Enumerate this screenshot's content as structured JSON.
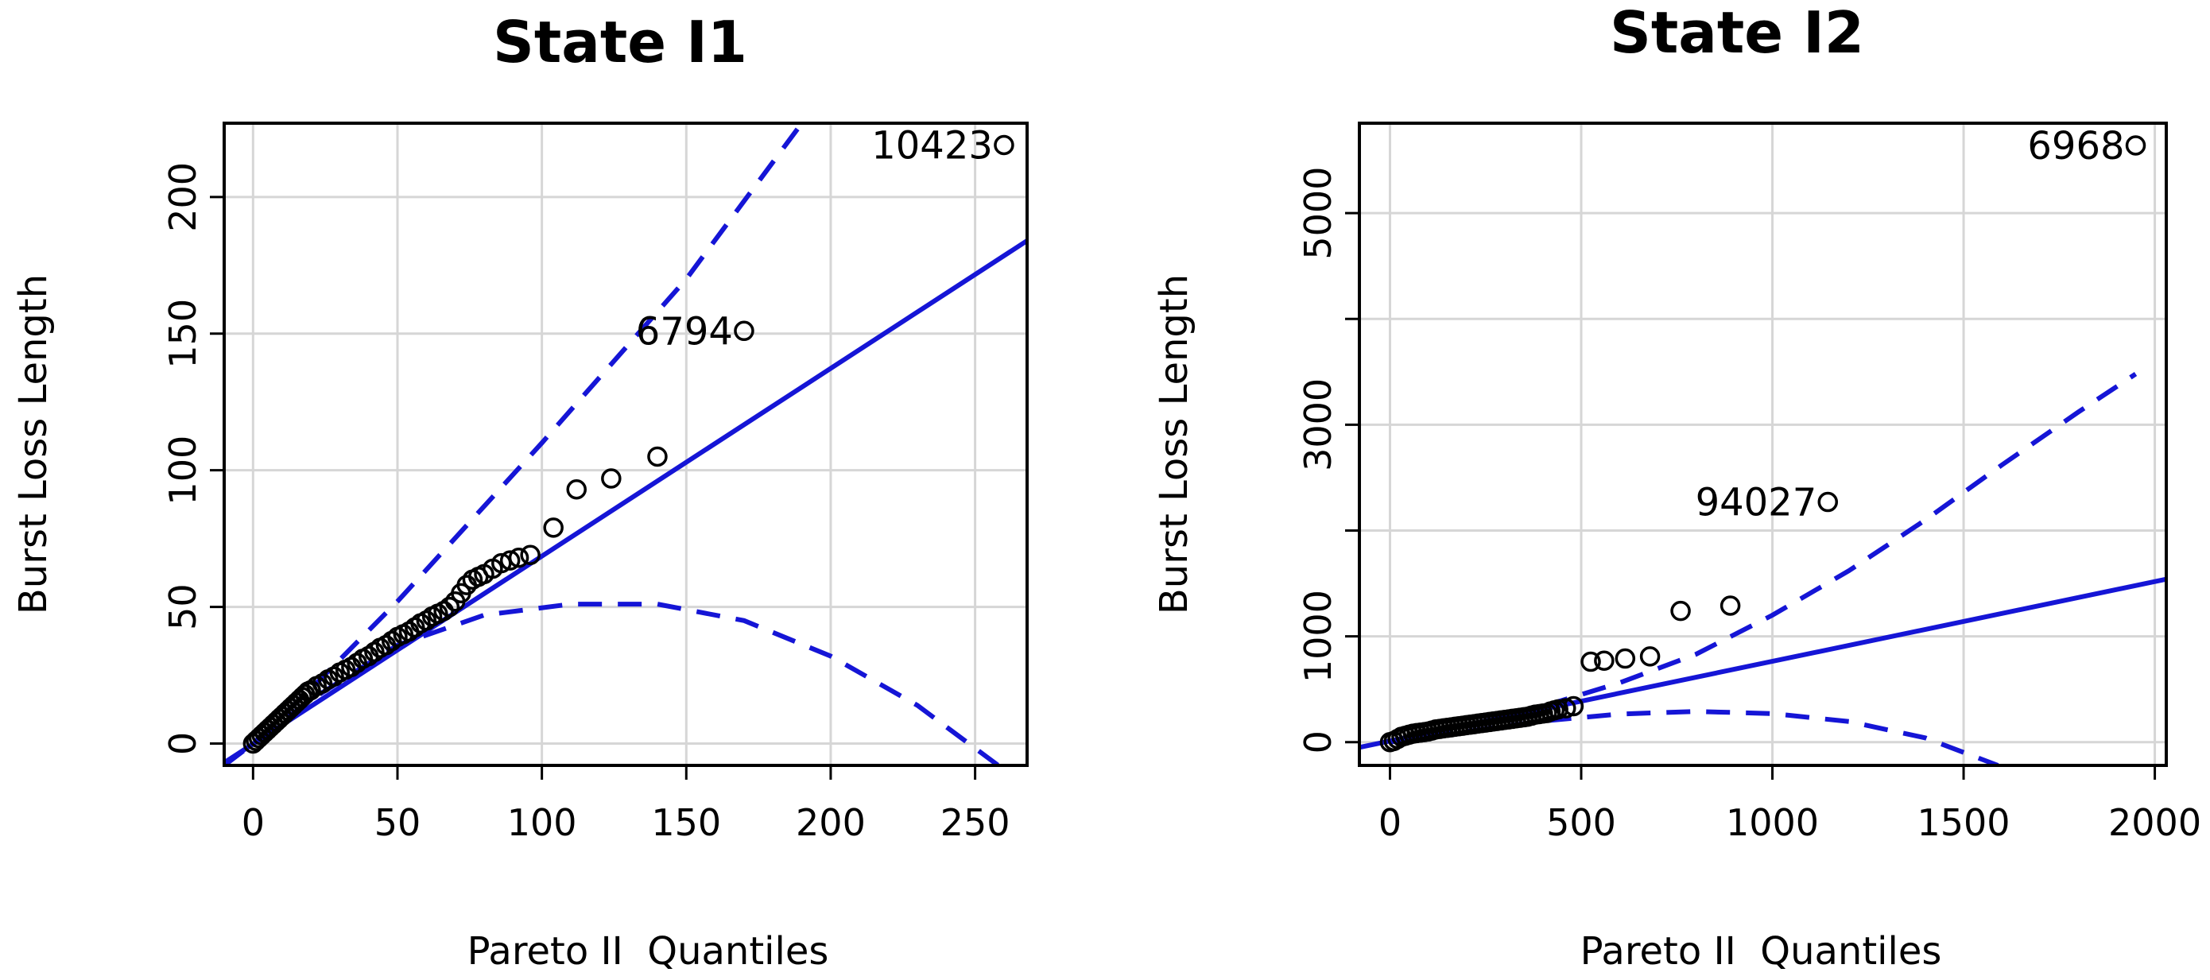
{
  "chart_data": [
    {
      "type": "scatter",
      "title": "State I1",
      "xlabel": "Pareto II  Quantiles",
      "ylabel": "Burst Loss Length",
      "xlim": [
        -10,
        268
      ],
      "ylim": [
        -8,
        227
      ],
      "xticks": [
        0,
        50,
        100,
        150,
        200,
        250
      ],
      "yticks": [
        0,
        50,
        100,
        150,
        200
      ],
      "grid": true,
      "colors": {
        "points": "#000000",
        "reference": "#1515d6"
      },
      "reference_line": {
        "name": "",
        "style": "solid",
        "points": [
          [
            -10,
            -7
          ],
          [
            268,
            184
          ]
        ]
      },
      "confidence_bands": [
        {
          "style": "dashed",
          "points": [
            [
              -10,
              -8
            ],
            [
              0,
              0
            ],
            [
              20,
              20
            ],
            [
              50,
              52
            ],
            [
              100,
              110
            ],
            [
              150,
              170
            ],
            [
              190,
              227
            ]
          ]
        },
        {
          "style": "dashed",
          "points": [
            [
              -10,
              -8
            ],
            [
              0,
              0
            ],
            [
              20,
              16
            ],
            [
              50,
              36
            ],
            [
              80,
              47
            ],
            [
              110,
              51
            ],
            [
              140,
              51
            ],
            [
              170,
              45
            ],
            [
              200,
              32
            ],
            [
              230,
              14
            ],
            [
              258,
              -8
            ]
          ]
        }
      ],
      "points": [
        [
          0,
          0
        ],
        [
          1,
          1
        ],
        [
          2,
          2
        ],
        [
          3,
          3
        ],
        [
          4,
          4
        ],
        [
          5,
          5
        ],
        [
          6,
          6
        ],
        [
          7,
          7
        ],
        [
          8,
          8
        ],
        [
          9,
          9
        ],
        [
          10,
          10
        ],
        [
          11,
          11
        ],
        [
          12,
          12
        ],
        [
          13,
          13
        ],
        [
          14,
          14
        ],
        [
          15,
          15
        ],
        [
          16,
          16
        ],
        [
          17,
          17
        ],
        [
          18,
          18
        ],
        [
          19,
          19
        ],
        [
          20,
          19.5
        ],
        [
          22,
          21
        ],
        [
          24,
          22
        ],
        [
          26,
          23.5
        ],
        [
          28,
          24.5
        ],
        [
          30,
          26
        ],
        [
          32,
          27
        ],
        [
          34,
          28
        ],
        [
          36,
          29.5
        ],
        [
          38,
          31
        ],
        [
          40,
          32
        ],
        [
          42,
          33.5
        ],
        [
          44,
          35
        ],
        [
          46,
          36
        ],
        [
          48,
          37.5
        ],
        [
          50,
          39
        ],
        [
          52,
          40
        ],
        [
          54,
          41
        ],
        [
          56,
          42.5
        ],
        [
          58,
          44
        ],
        [
          60,
          45
        ],
        [
          62,
          46.5
        ],
        [
          64,
          47.5
        ],
        [
          66,
          48.5
        ],
        [
          68,
          50
        ],
        [
          70,
          52
        ],
        [
          72,
          55
        ],
        [
          74,
          58
        ],
        [
          76,
          60
        ],
        [
          78,
          61
        ],
        [
          80,
          62
        ],
        [
          83,
          64
        ],
        [
          86,
          66
        ],
        [
          89,
          67
        ],
        [
          92,
          68
        ],
        [
          96,
          69
        ],
        [
          104,
          79
        ],
        [
          112,
          93
        ],
        [
          124,
          97
        ],
        [
          140,
          105
        ],
        [
          170,
          151
        ],
        [
          260,
          219
        ]
      ],
      "annotations": [
        {
          "label": "6794",
          "x": 170,
          "y": 151
        },
        {
          "label": "10423",
          "x": 260,
          "y": 219
        }
      ]
    },
    {
      "type": "scatter",
      "title": "State I2",
      "xlabel": "Pareto II  Quantiles",
      "ylabel": "Burst Loss Length",
      "xlim": [
        -80,
        2030
      ],
      "ylim": [
        -220,
        5850
      ],
      "xticks": [
        0,
        500,
        1000,
        1500,
        2000
      ],
      "yticks": [
        0,
        1000,
        2000,
        3000,
        4000,
        5000
      ],
      "ytick_labels": [
        "0",
        "1000",
        "",
        "3000",
        "",
        "5000"
      ],
      "grid": true,
      "colors": {
        "points": "#000000",
        "reference": "#1515d6"
      },
      "reference_line": {
        "name": "",
        "style": "solid",
        "points": [
          [
            -80,
            -50
          ],
          [
            2030,
            1540
          ]
        ]
      },
      "confidence_bands": [
        {
          "style": "dashed",
          "points": [
            [
              0,
              0
            ],
            [
              200,
              150
            ],
            [
              400,
              340
            ],
            [
              600,
              560
            ],
            [
              800,
              830
            ],
            [
              1000,
              1200
            ],
            [
              1200,
              1620
            ],
            [
              1400,
              2100
            ],
            [
              1600,
              2620
            ],
            [
              1800,
              3120
            ],
            [
              1950,
              3480
            ]
          ]
        },
        {
          "style": "dashed",
          "points": [
            [
              0,
              0
            ],
            [
              200,
              100
            ],
            [
              400,
              200
            ],
            [
              600,
              265
            ],
            [
              800,
              290
            ],
            [
              1000,
              270
            ],
            [
              1200,
              195
            ],
            [
              1400,
              40
            ],
            [
              1590,
              -220
            ]
          ]
        }
      ],
      "points": [
        [
          0,
          0
        ],
        [
          10,
          10
        ],
        [
          20,
          30
        ],
        [
          30,
          50
        ],
        [
          40,
          60
        ],
        [
          50,
          70
        ],
        [
          60,
          80
        ],
        [
          70,
          85
        ],
        [
          80,
          90
        ],
        [
          90,
          95
        ],
        [
          100,
          100
        ],
        [
          110,
          110
        ],
        [
          120,
          120
        ],
        [
          130,
          125
        ],
        [
          140,
          130
        ],
        [
          150,
          135
        ],
        [
          160,
          140
        ],
        [
          170,
          145
        ],
        [
          180,
          150
        ],
        [
          190,
          155
        ],
        [
          200,
          160
        ],
        [
          210,
          165
        ],
        [
          220,
          170
        ],
        [
          230,
          175
        ],
        [
          240,
          180
        ],
        [
          250,
          185
        ],
        [
          260,
          190
        ],
        [
          270,
          195
        ],
        [
          280,
          200
        ],
        [
          290,
          205
        ],
        [
          300,
          210
        ],
        [
          310,
          215
        ],
        [
          320,
          220
        ],
        [
          330,
          225
        ],
        [
          340,
          230
        ],
        [
          350,
          235
        ],
        [
          360,
          240
        ],
        [
          370,
          250
        ],
        [
          380,
          260
        ],
        [
          390,
          265
        ],
        [
          400,
          270
        ],
        [
          410,
          275
        ],
        [
          420,
          290
        ],
        [
          430,
          300
        ],
        [
          440,
          310
        ],
        [
          460,
          320
        ],
        [
          480,
          340
        ],
        [
          525,
          760
        ],
        [
          560,
          770
        ],
        [
          615,
          790
        ],
        [
          680,
          810
        ],
        [
          760,
          1240
        ],
        [
          890,
          1290
        ],
        [
          1145,
          2270
        ],
        [
          1950,
          5640
        ]
      ],
      "annotations": [
        {
          "label": "94027",
          "x": 1145,
          "y": 2270
        },
        {
          "label": "6968",
          "x": 1950,
          "y": 5640
        }
      ]
    }
  ]
}
